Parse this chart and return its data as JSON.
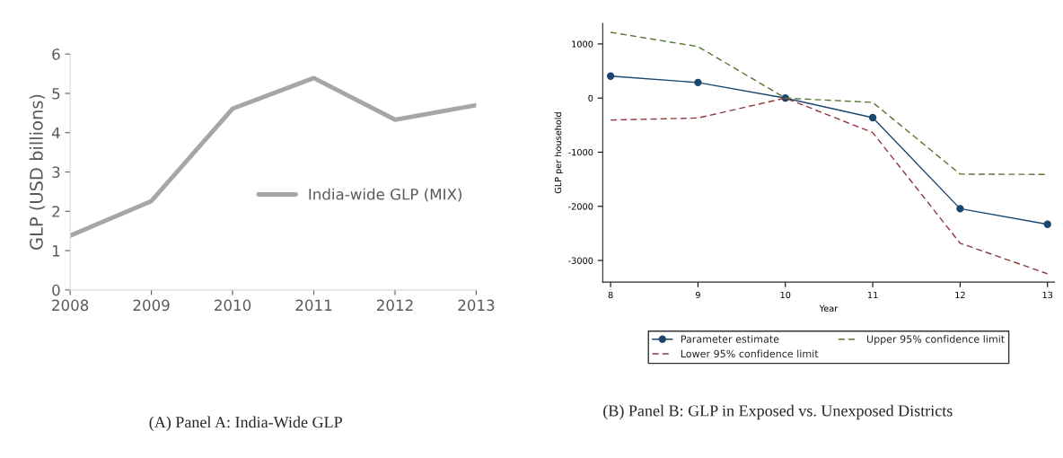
{
  "chart_data": [
    {
      "type": "line",
      "ylabel": "GLP (USD billions)",
      "x": [
        2008,
        2009,
        2010,
        2011,
        2012,
        2013
      ],
      "series": [
        {
          "name": "India-wide GLP (MIX)",
          "color": "#a6a6a6",
          "values": [
            1.38,
            2.26,
            4.61,
            5.39,
            4.33,
            4.7
          ]
        }
      ],
      "xlim": [
        2008,
        2013
      ],
      "xticks": [
        2008,
        2009,
        2010,
        2011,
        2012,
        2013
      ],
      "ylim": [
        0,
        6
      ],
      "yticks": [
        0,
        1,
        2,
        3,
        4,
        5,
        6
      ],
      "grid": false,
      "legend": "right",
      "marker": "none",
      "line_style": "solid",
      "annotations": [
        "(A) Panel A: India-Wide GLP"
      ]
    },
    {
      "type": "line",
      "xlabel": "Year",
      "ylabel": "GLP per household",
      "x": [
        8,
        9,
        10,
        11,
        12,
        13
      ],
      "series": [
        {
          "name": "Parameter estimate",
          "color": "#1a476f",
          "values": [
            405,
            288,
            0,
            -362,
            -2043,
            -2331
          ],
          "marker": "circle",
          "line_style": "solid"
        },
        {
          "name": "Lower 95% confidence limit",
          "color": "#90353b",
          "values": [
            -405,
            -368,
            0,
            -638,
            -2681,
            -3245
          ],
          "marker": "none",
          "line_style": "dashed"
        },
        {
          "name": "Upper 95% confidence limit",
          "color": "#55752f",
          "values": [
            1215,
            951,
            0,
            -80,
            -1405,
            -1411
          ],
          "marker": "none",
          "line_style": "dashed"
        }
      ],
      "xlim": [
        7.91,
        13.08
      ],
      "xticks": [
        8,
        9,
        10,
        11,
        12,
        13
      ],
      "ylim": [
        -3400,
        1380
      ],
      "yticks": [
        -3000,
        -2000,
        -1000,
        0,
        1000
      ],
      "grid": false,
      "legend": "bottom",
      "annotations": [
        "(B) Panel B: GLP in Exposed vs. Unexposed Districts"
      ]
    }
  ]
}
